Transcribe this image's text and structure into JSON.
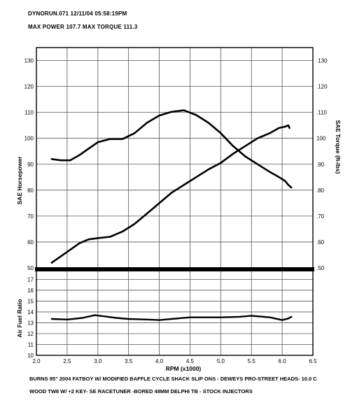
{
  "header": {
    "run_line": "DYNORUN.071   12/11/04   05:58:19PM",
    "max_line": "MAX POWER 107.7     MAX TORQUE 111.3"
  },
  "footer": {
    "line1": "BURNS 95\" 2004 FATBOY W/ MODIFIED BAFFLE CYCLE SHACK SLIP ONS - DEWEYS PRO-STREET HEADS- 10.0 C",
    "line2": "WOOD TW8 W/ +2 KEY- SE RACETUNER -BORED 48MM DELPHI TB - STOCK INJECTORS"
  },
  "colors": {
    "line": "#000000",
    "grid": "#555555"
  },
  "chart_data": [
    {
      "type": "line",
      "xlabel": "RPM (x1000)",
      "ylabel": "SAE Horsepower",
      "y2label": "SAE Torque (ft-lbs)",
      "xlim": [
        2.0,
        6.5
      ],
      "ylim": [
        50,
        135
      ],
      "y2lim": [
        50,
        135
      ],
      "grid": true,
      "xticks": [
        "2.0",
        "2.5",
        "3.0",
        "3.5",
        "4.0",
        "4.5",
        "5.0",
        "5.5",
        "6.0",
        "6.5"
      ],
      "yticks": [
        "50",
        "60",
        "70",
        "80",
        "90",
        "100",
        "110",
        "120",
        "130"
      ],
      "y2ticks": [
        ".50",
        ".60",
        ".70",
        ".80",
        ".90",
        "100",
        ".110",
        ".120",
        ".130"
      ],
      "series": [
        {
          "id": "horsepower",
          "x": [
            2.25,
            2.4,
            2.55,
            2.7,
            2.85,
            3.0,
            3.2,
            3.4,
            3.6,
            3.8,
            4.0,
            4.2,
            4.4,
            4.6,
            4.8,
            5.0,
            5.2,
            5.4,
            5.6,
            5.8,
            5.95,
            6.05,
            6.1,
            6.12
          ],
          "values": [
            52,
            54.5,
            57,
            59.5,
            61,
            61.5,
            62,
            64,
            67,
            71,
            75,
            79,
            82,
            85,
            88,
            90.5,
            94,
            97,
            100,
            102,
            104,
            104.5,
            105,
            104
          ]
        },
        {
          "id": "torque",
          "x": [
            2.25,
            2.4,
            2.55,
            2.7,
            2.85,
            3.0,
            3.2,
            3.4,
            3.6,
            3.8,
            4.0,
            4.2,
            4.4,
            4.6,
            4.8,
            5.0,
            5.2,
            5.4,
            5.6,
            5.8,
            5.95,
            6.05,
            6.1,
            6.15
          ],
          "values": [
            92,
            91.5,
            91.5,
            93.5,
            96,
            98.5,
            99.7,
            99.7,
            102,
            106,
            108.8,
            110.2,
            110.8,
            109,
            106,
            102,
            97,
            93,
            90,
            87,
            85,
            83.5,
            82,
            81
          ]
        }
      ]
    },
    {
      "type": "line",
      "ylabel": "Air Fuel Ratio",
      "xlim": [
        2.0,
        6.5
      ],
      "ylim": [
        10,
        17.8
      ],
      "grid": true,
      "yticks": [
        "10",
        "11",
        "12",
        "13",
        "14",
        "15",
        "16",
        "17"
      ],
      "series": [
        {
          "id": "afr",
          "x": [
            2.25,
            2.5,
            2.75,
            2.95,
            3.1,
            3.3,
            3.5,
            3.8,
            4.0,
            4.2,
            4.5,
            5.0,
            5.3,
            5.5,
            5.8,
            6.0,
            6.1,
            6.15
          ],
          "values": [
            13.35,
            13.3,
            13.45,
            13.7,
            13.6,
            13.45,
            13.35,
            13.3,
            13.25,
            13.35,
            13.5,
            13.5,
            13.55,
            13.65,
            13.5,
            13.25,
            13.4,
            13.55
          ]
        }
      ]
    }
  ]
}
